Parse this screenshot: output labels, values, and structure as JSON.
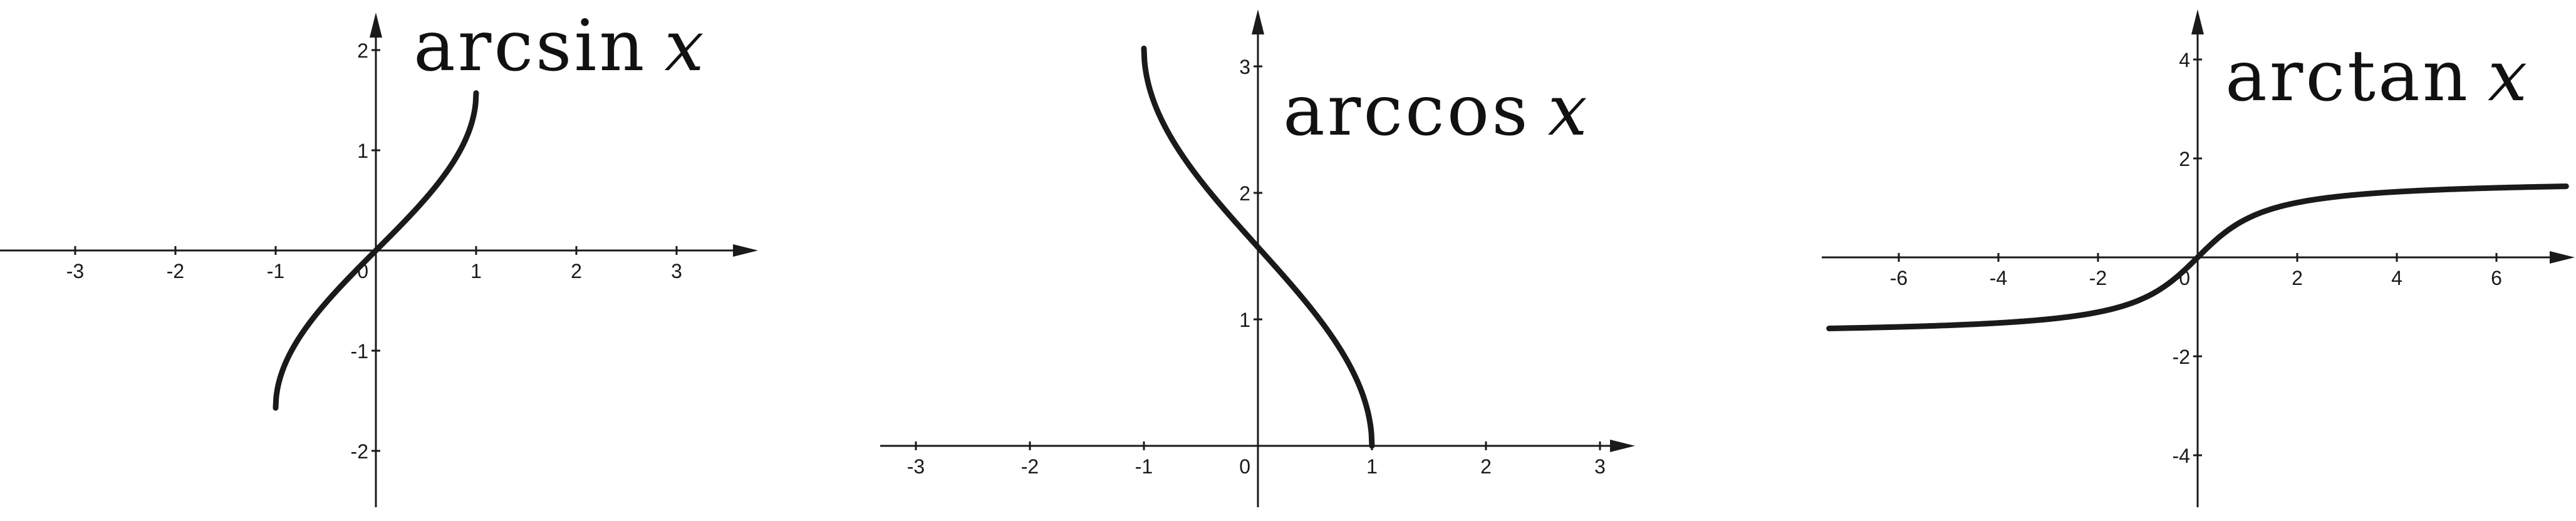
{
  "chart_data": [
    {
      "type": "line",
      "title_func": "arcsin",
      "title_var": "x",
      "xlim": [
        -3.75,
        3.75
      ],
      "ylim": [
        -2.45,
        2.25
      ],
      "x_ticks": [
        -3,
        -2,
        -1,
        1,
        2,
        3
      ],
      "y_ticks": [
        -2,
        -1,
        1,
        2
      ],
      "x_tick_labels": [
        "-3",
        "-2",
        "-1",
        "1",
        "2",
        "3"
      ],
      "y_tick_labels": [
        "-2",
        "-1",
        "1",
        "2"
      ],
      "origin_label": "0",
      "series": [
        {
          "function": "arcsin",
          "x_range": [
            -1,
            1
          ],
          "color": "#1a1a1a"
        }
      ]
    },
    {
      "type": "line",
      "title_func": "arccos",
      "title_var": "x",
      "xlim": [
        -3.3,
        3.3
      ],
      "ylim": [
        -0.5,
        3.45
      ],
      "x_ticks": [
        -3,
        -2,
        -1,
        1,
        2,
        3
      ],
      "y_ticks": [
        1,
        2,
        3
      ],
      "x_tick_labels": [
        "-3",
        "-2",
        "-1",
        "1",
        "2",
        "3"
      ],
      "y_tick_labels": [
        "1",
        "2",
        "3"
      ],
      "origin_label": "0",
      "series": [
        {
          "function": "arccos",
          "x_range": [
            -1,
            1
          ],
          "color": "#1a1a1a"
        }
      ]
    },
    {
      "type": "line",
      "title_func": "arctan",
      "title_var": "x",
      "xlim": [
        -7.4,
        7.7
      ],
      "ylim": [
        -4.95,
        4.5
      ],
      "x_ticks": [
        -6,
        -4,
        -2,
        2,
        4,
        6
      ],
      "y_ticks": [
        -4,
        -2,
        2,
        4
      ],
      "x_tick_labels": [
        "-6",
        "-4",
        "-2",
        "2",
        "4",
        "6"
      ],
      "y_tick_labels": [
        "-4",
        "-2",
        "2",
        "4"
      ],
      "origin_label": "0",
      "series": [
        {
          "function": "arctan",
          "x_range": [
            -7.4,
            7.4
          ],
          "color": "#1a1a1a"
        }
      ]
    }
  ]
}
